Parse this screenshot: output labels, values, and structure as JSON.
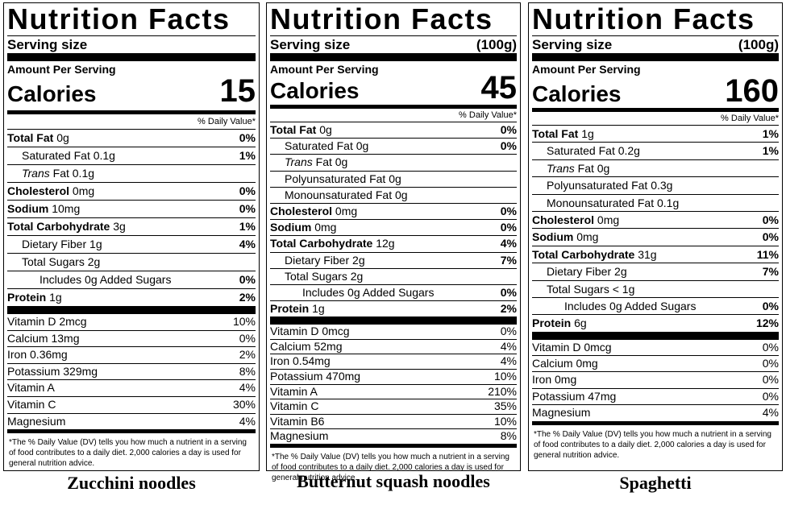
{
  "panels": [
    {
      "title": "Nutrition Facts",
      "serving_label": "Serving size",
      "serving_value": "",
      "amount_label": "Amount Per Serving",
      "calories_label": "Calories",
      "calories": "15",
      "dv_header": "% Daily Value*",
      "nutrients": [
        {
          "name": "Total Fat",
          "amount": "0g",
          "dv": "0%",
          "bold": true,
          "indent": 0
        },
        {
          "name": "Saturated Fat",
          "amount": "0.1g",
          "dv": "1%",
          "bold": false,
          "indent": 1
        },
        {
          "name": "Trans",
          "name_suffix": " Fat",
          "amount": "0.1g",
          "dv": "",
          "bold": false,
          "indent": 1,
          "italic": true
        },
        {
          "name": "Cholesterol",
          "amount": "0mg",
          "dv": "0%",
          "bold": true,
          "indent": 0
        },
        {
          "name": "Sodium",
          "amount": "10mg",
          "dv": "0%",
          "bold": true,
          "indent": 0
        },
        {
          "name": "Total Carbohydrate",
          "amount": "3g",
          "dv": "1%",
          "bold": true,
          "indent": 0
        },
        {
          "name": "Dietary Fiber",
          "amount": "1g",
          "dv": "4%",
          "bold": false,
          "indent": 1
        },
        {
          "name": "Total Sugars",
          "amount": "2g",
          "dv": "",
          "bold": false,
          "indent": 1
        },
        {
          "name": "Includes 0g Added Sugars",
          "amount": "",
          "dv": "0%",
          "bold": false,
          "indent": 2
        },
        {
          "name": "Protein",
          "amount": "1g",
          "dv": "2%",
          "bold": true,
          "indent": 0
        }
      ],
      "vitamins": [
        {
          "name": "Vitamin D 2mcg",
          "dv": "10%"
        },
        {
          "name": "Calcium 13mg",
          "dv": "0%"
        },
        {
          "name": "Iron 0.36mg",
          "dv": "2%"
        },
        {
          "name": "Potassium 329mg",
          "dv": "8%"
        },
        {
          "name": "Vitamin A",
          "dv": "4%"
        },
        {
          "name": "Vitamin C",
          "dv": "30%"
        },
        {
          "name": "Magnesium",
          "dv": "4%"
        }
      ],
      "footnote": "*The % Daily Value (DV) tells you how much a nutrient in a serving of food contributes to a daily diet. 2,000 calories a day is used for general nutrition advice.",
      "caption": "Zucchini noodles"
    },
    {
      "title": "Nutrition Facts",
      "serving_label": "Serving size",
      "serving_value": "(100g)",
      "amount_label": "Amount Per Serving",
      "calories_label": "Calories",
      "calories": "45",
      "dv_header": "% Daily Value*",
      "nutrients": [
        {
          "name": "Total Fat",
          "amount": "0g",
          "dv": "0%",
          "bold": true,
          "indent": 0
        },
        {
          "name": "Saturated Fat",
          "amount": "0g",
          "dv": "0%",
          "bold": false,
          "indent": 1
        },
        {
          "name": "Trans",
          "name_suffix": " Fat",
          "amount": "0g",
          "dv": "",
          "bold": false,
          "indent": 1,
          "italic": true
        },
        {
          "name": "Polyunsaturated Fat",
          "amount": "0g",
          "dv": "",
          "bold": false,
          "indent": 1
        },
        {
          "name": "Monounsaturated Fat",
          "amount": "0g",
          "dv": "",
          "bold": false,
          "indent": 1
        },
        {
          "name": "Cholesterol",
          "amount": "0mg",
          "dv": "0%",
          "bold": true,
          "indent": 0
        },
        {
          "name": "Sodium",
          "amount": "0mg",
          "dv": "0%",
          "bold": true,
          "indent": 0
        },
        {
          "name": "Total Carbohydrate",
          "amount": "12g",
          "dv": "4%",
          "bold": true,
          "indent": 0
        },
        {
          "name": "Dietary Fiber",
          "amount": "2g",
          "dv": "7%",
          "bold": false,
          "indent": 1
        },
        {
          "name": "Total Sugars",
          "amount": "2g",
          "dv": "",
          "bold": false,
          "indent": 1
        },
        {
          "name": "Includes 0g Added Sugars",
          "amount": "",
          "dv": "0%",
          "bold": false,
          "indent": 2
        },
        {
          "name": "Protein",
          "amount": "1g",
          "dv": "2%",
          "bold": true,
          "indent": 0
        }
      ],
      "vitamins": [
        {
          "name": "Vitamin D 0mcg",
          "dv": "0%"
        },
        {
          "name": "Calcium 52mg",
          "dv": "4%"
        },
        {
          "name": "Iron 0.54mg",
          "dv": "4%"
        },
        {
          "name": "Potassium 470mg",
          "dv": "10%"
        },
        {
          "name": "Vitamin A",
          "dv": "210%"
        },
        {
          "name": "Vitamin C",
          "dv": "35%"
        },
        {
          "name": "Vitamin B6",
          "dv": "10%"
        },
        {
          "name": "Magnesium",
          "dv": "8%"
        }
      ],
      "footnote": "*The % Daily Value (DV) tells you how much a nutrient in a serving of food contributes to a daily diet. 2,000 calories a day is used for general nutrition advice.",
      "caption": "Butternut squash noodles"
    },
    {
      "title": "Nutrition Facts",
      "serving_label": "Serving size",
      "serving_value": "(100g)",
      "amount_label": "Amount Per Serving",
      "calories_label": "Calories",
      "calories": "160",
      "dv_header": "% Daily Value*",
      "nutrients": [
        {
          "name": "Total Fat",
          "amount": "1g",
          "dv": "1%",
          "bold": true,
          "indent": 0
        },
        {
          "name": "Saturated Fat",
          "amount": "0.2g",
          "dv": "1%",
          "bold": false,
          "indent": 1
        },
        {
          "name": "Trans",
          "name_suffix": " Fat",
          "amount": "0g",
          "dv": "",
          "bold": false,
          "indent": 1,
          "italic": true
        },
        {
          "name": "Polyunsaturated Fat",
          "amount": "0.3g",
          "dv": "",
          "bold": false,
          "indent": 1
        },
        {
          "name": "Monounsaturated Fat",
          "amount": "0.1g",
          "dv": "",
          "bold": false,
          "indent": 1
        },
        {
          "name": "Cholesterol",
          "amount": "0mg",
          "dv": "0%",
          "bold": true,
          "indent": 0
        },
        {
          "name": "Sodium",
          "amount": "0mg",
          "dv": "0%",
          "bold": true,
          "indent": 0
        },
        {
          "name": "Total Carbohydrate",
          "amount": "31g",
          "dv": "11%",
          "bold": true,
          "indent": 0
        },
        {
          "name": "Dietary Fiber",
          "amount": "2g",
          "dv": "7%",
          "bold": false,
          "indent": 1
        },
        {
          "name": "Total Sugars",
          "amount": "< 1g",
          "dv": "",
          "bold": false,
          "indent": 1
        },
        {
          "name": "Includes 0g Added Sugars",
          "amount": "",
          "dv": "0%",
          "bold": false,
          "indent": 2
        },
        {
          "name": "Protein",
          "amount": "6g",
          "dv": "12%",
          "bold": true,
          "indent": 0
        }
      ],
      "vitamins": [
        {
          "name": "Vitamin D 0mcg",
          "dv": "0%"
        },
        {
          "name": "Calcium 0mg",
          "dv": "0%"
        },
        {
          "name": "Iron 0mg",
          "dv": "0%"
        },
        {
          "name": "Potassium 47mg",
          "dv": "0%"
        },
        {
          "name": "Magnesium",
          "dv": "4%"
        }
      ],
      "footnote": "*The % Daily Value (DV) tells you how much a nutrient in a serving of food contributes to a daily diet. 2,000 calories a day is used for general nutrition advice.",
      "caption": "Spaghetti"
    }
  ]
}
